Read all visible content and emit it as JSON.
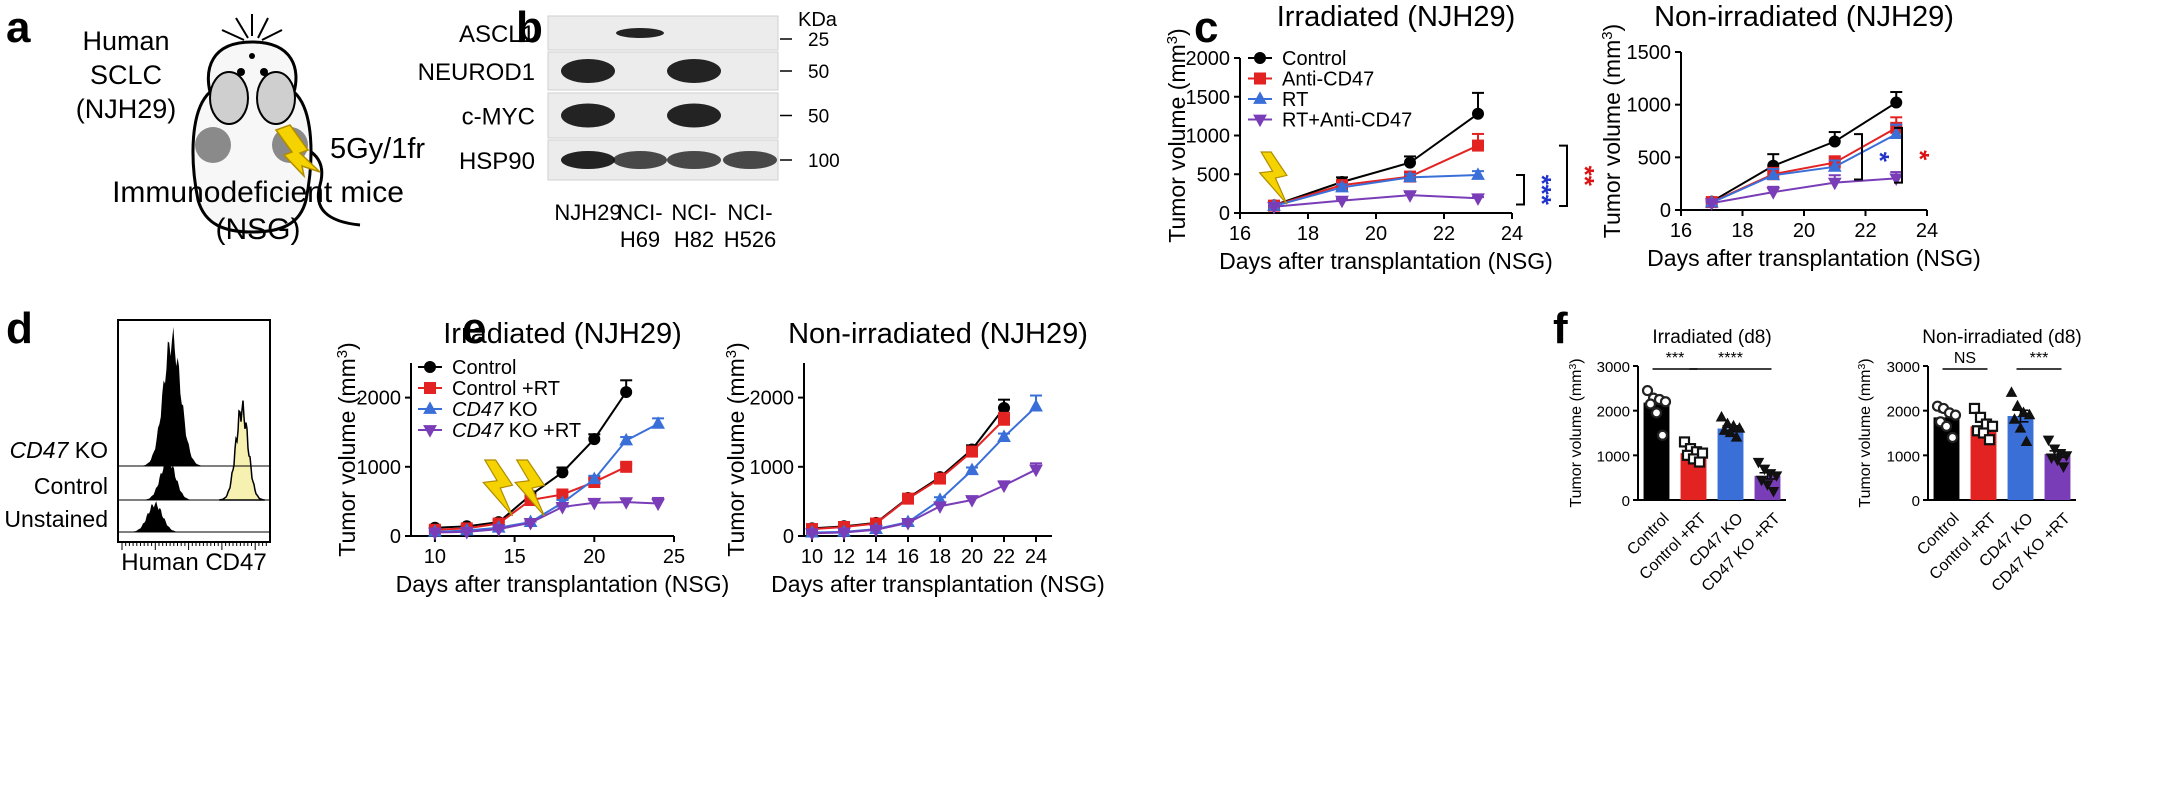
{
  "colors": {
    "control": "#000000",
    "anti_cd47": "#e32222",
    "rt": "#3a6fd8",
    "rt_anti_cd47": "#7a3db8",
    "bolt": "#f5d300",
    "bolt_stroke": "#b08c00",
    "flow_fill": "#f6f1b1",
    "sig_blue": "#2233cc",
    "sig_red": "#dd1111"
  },
  "panel_letters": [
    "a",
    "b",
    "c",
    "d",
    "e",
    "f"
  ],
  "panel_a": {
    "label_line1": "Human",
    "label_line2": "SCLC",
    "label_line3": "(NJH29)",
    "dose": "5Gy/1fr",
    "mice_line1": "Immunodeficient mice",
    "mice_line2": "(NSG)",
    "icons": [
      "mouse-icon",
      "lightning-icon"
    ]
  },
  "panel_b": {
    "unit": "KDa",
    "rows": [
      {
        "protein": "ASCL1",
        "marker": "25"
      },
      {
        "protein": "NEUROD1",
        "marker": "50"
      },
      {
        "protein": "c-MYC",
        "marker": "50"
      },
      {
        "protein": "HSP90",
        "marker": "100"
      }
    ],
    "lanes": [
      {
        "line1": "NJH29",
        "line2": ""
      },
      {
        "line1": "NCI-",
        "line2": "H69"
      },
      {
        "line1": "NCI-",
        "line2": "H82"
      },
      {
        "line1": "NCI-",
        "line2": "H526"
      }
    ],
    "band_presence": [
      [
        0,
        1,
        0,
        0
      ],
      [
        1,
        0,
        1,
        0
      ],
      [
        1,
        0,
        1,
        0
      ],
      [
        1,
        1,
        1,
        1
      ]
    ]
  },
  "panel_d": {
    "xlabel": "Human CD47",
    "tracks": [
      "CD47 KO",
      "Control",
      "Unstained"
    ]
  },
  "chart_data": [
    {
      "type": "line",
      "panel": "c",
      "title": "Irradiated (NJH29)",
      "xlabel": "Days after transplantation (NSG)",
      "ylabel": "Tumor volume (mm3)",
      "ylabel_main": "Tumor volume (mm",
      "ylabel_sup": "3",
      "ylabel_end": ")",
      "xlim": [
        16,
        24
      ],
      "ylim": [
        0,
        2000
      ],
      "xticks": [
        "16",
        "18",
        "20",
        "22",
        "24"
      ],
      "yticks": [
        "0",
        "500",
        "1000",
        "1500",
        "2000"
      ],
      "x": [
        17,
        19,
        21,
        23
      ],
      "legend": "top-left",
      "irradiation_days": [
        17
      ],
      "series": [
        {
          "name": "Control",
          "color_key": "control",
          "marker": "circle",
          "values": [
            100,
            400,
            650,
            1280
          ],
          "errors": [
            20,
            60,
            80,
            270
          ]
        },
        {
          "name": "Anti-CD47",
          "color_key": "anti_cd47",
          "marker": "square",
          "values": [
            95,
            360,
            470,
            870
          ],
          "errors": [
            15,
            50,
            60,
            150
          ]
        },
        {
          "name": "RT",
          "color_key": "rt",
          "marker": "triangle-up",
          "values": [
            90,
            330,
            460,
            490
          ],
          "errors": [
            15,
            40,
            40,
            50
          ]
        },
        {
          "name": "RT+Anti-CD47",
          "color_key": "rt_anti_cd47",
          "marker": "triangle-down",
          "values": [
            80,
            160,
            230,
            190
          ],
          "errors": [
            10,
            20,
            40,
            15
          ]
        }
      ],
      "significance": [
        {
          "text": "***",
          "color_key": "sig_blue"
        },
        {
          "text": "**",
          "color_key": "sig_red"
        }
      ]
    },
    {
      "type": "line",
      "panel": "c",
      "title": "Non-irradiated (NJH29)",
      "xlabel": "Days after transplantation (NSG)",
      "ylabel_main": "Tumor volume (mm",
      "ylabel_sup": "3",
      "ylabel_end": ")",
      "xlim": [
        16,
        24
      ],
      "ylim": [
        0,
        1500
      ],
      "xticks": [
        "16",
        "18",
        "20",
        "22",
        "24"
      ],
      "yticks": [
        "0",
        "500",
        "1000",
        "1500"
      ],
      "x": [
        17,
        19,
        21,
        23
      ],
      "series": [
        {
          "name": "Control",
          "color_key": "control",
          "marker": "circle",
          "values": [
            80,
            420,
            650,
            1020
          ],
          "errors": [
            15,
            110,
            90,
            100
          ]
        },
        {
          "name": "Anti-CD47",
          "color_key": "anti_cd47",
          "marker": "square",
          "values": [
            75,
            340,
            450,
            780
          ],
          "errors": [
            15,
            60,
            60,
            100
          ]
        },
        {
          "name": "RT",
          "color_key": "rt",
          "marker": "triangle-up",
          "values": [
            70,
            330,
            410,
            720
          ],
          "errors": [
            15,
            60,
            60,
            90
          ]
        },
        {
          "name": "RT+Anti-CD47",
          "color_key": "rt_anti_cd47",
          "marker": "triangle-down",
          "values": [
            65,
            170,
            260,
            300
          ],
          "errors": [
            10,
            50,
            70,
            60
          ]
        }
      ],
      "significance": [
        {
          "text": "*",
          "color_key": "sig_blue"
        },
        {
          "text": "*",
          "color_key": "sig_red"
        }
      ]
    },
    {
      "type": "line",
      "panel": "e",
      "title": "Irradiated (NJH29)",
      "xlabel": "Days after transplantation (NSG)",
      "ylabel_main": "Tumor volume (mm",
      "ylabel_sup": "3",
      "ylabel_end": ")",
      "xlim": [
        8.5,
        25
      ],
      "ylim": [
        0,
        2500
      ],
      "xticks": [
        "10",
        "15",
        "20",
        "25"
      ],
      "xtick_values": [
        10,
        15,
        20,
        25
      ],
      "yticks": [
        "0",
        "1000",
        "2000"
      ],
      "ytick_values": [
        0,
        1000,
        2000
      ],
      "x": [
        10,
        12,
        14,
        16,
        18,
        20,
        22,
        24
      ],
      "legend": "top-left",
      "irradiation_days": [
        14,
        16
      ],
      "series": [
        {
          "name": "Control",
          "color_key": "control",
          "marker": "circle",
          "values": [
            120,
            140,
            200,
            590,
            920,
            1400,
            2080,
            null
          ],
          "errors": [
            20,
            20,
            30,
            50,
            70,
            70,
            170,
            null
          ]
        },
        {
          "name": "Control +RT",
          "color_key": "anti_cd47",
          "marker": "square",
          "values": [
            90,
            110,
            180,
            520,
            600,
            780,
            1000,
            null
          ],
          "errors": [
            15,
            15,
            20,
            40,
            40,
            40,
            40,
            null
          ]
        },
        {
          "name": "CD47 KO",
          "name_italic": "CD47",
          "name_rest": " KO",
          "color_key": "rt",
          "marker": "triangle-up",
          "values": [
            60,
            80,
            120,
            200,
            480,
            820,
            1380,
            1620
          ],
          "errors": [
            10,
            10,
            15,
            30,
            40,
            50,
            50,
            80
          ]
        },
        {
          "name": "CD47 KO +RT",
          "name_italic": "CD47",
          "name_rest": " KO +RT",
          "color_key": "rt_anti_cd47",
          "marker": "triangle-down",
          "values": [
            50,
            60,
            100,
            190,
            420,
            480,
            490,
            470
          ],
          "errors": [
            10,
            10,
            15,
            20,
            40,
            40,
            50,
            80
          ]
        }
      ]
    },
    {
      "type": "line",
      "panel": "e",
      "title": "Non-irradiated (NJH29)",
      "xlabel": "Days after transplantation (NSG)",
      "ylabel_main": "Tumor volume (mm",
      "ylabel_sup": "3",
      "ylabel_end": ")",
      "xlim": [
        9.5,
        25
      ],
      "ylim": [
        0,
        2500
      ],
      "xticks": [
        "10",
        "12",
        "14",
        "16",
        "18",
        "20",
        "22",
        "24"
      ],
      "xtick_values": [
        10,
        12,
        14,
        16,
        18,
        20,
        22,
        24
      ],
      "yticks": [
        "0",
        "1000",
        "2000"
      ],
      "ytick_values": [
        0,
        1000,
        2000
      ],
      "x": [
        10,
        12,
        14,
        16,
        18,
        20,
        22,
        24
      ],
      "series": [
        {
          "name": "Control",
          "color_key": "control",
          "marker": "circle",
          "values": [
            110,
            140,
            190,
            550,
            850,
            1250,
            1850,
            null
          ],
          "errors": [
            20,
            20,
            20,
            30,
            40,
            60,
            120,
            null
          ]
        },
        {
          "name": "Control +RT",
          "color_key": "anti_cd47",
          "marker": "square",
          "values": [
            100,
            130,
            180,
            540,
            830,
            1220,
            1680,
            null
          ],
          "errors": [
            20,
            20,
            20,
            30,
            40,
            60,
            100,
            null
          ]
        },
        {
          "name": "CD47 KO",
          "color_key": "rt",
          "marker": "triangle-up",
          "values": [
            50,
            60,
            100,
            200,
            520,
            950,
            1430,
            1870
          ],
          "errors": [
            10,
            10,
            15,
            20,
            40,
            40,
            50,
            160
          ]
        },
        {
          "name": "CD47 KO +RT",
          "color_key": "rt_anti_cd47",
          "marker": "triangle-down",
          "values": [
            40,
            50,
            90,
            190,
            430,
            520,
            730,
            960
          ],
          "errors": [
            10,
            10,
            15,
            20,
            30,
            40,
            60,
            90
          ]
        }
      ]
    },
    {
      "type": "bar",
      "panel": "f",
      "title": "Irradiated (d8)",
      "ylabel": "Tumor volume (mm3)",
      "ylabel_main": "Tumor volume (mm",
      "ylabel_sup": "3",
      "ylabel_end": ")",
      "ylim": [
        0,
        3000
      ],
      "yticks": [
        "0",
        "1000",
        "2000",
        "3000"
      ],
      "categories": [
        "Control",
        "Control +RT",
        "CD47 KO",
        "CD47 KO +RT"
      ],
      "color_keys": [
        "control",
        "anti_cd47",
        "rt",
        "rt_anti_cd47"
      ],
      "point_markers": [
        "circle",
        "square",
        "triangle-up",
        "triangle-down"
      ],
      "values": [
        2180,
        1050,
        1600,
        540
      ],
      "errors": [
        130,
        70,
        60,
        70
      ],
      "points": [
        [
          2450,
          2280,
          2250,
          2200,
          2150,
          1950,
          1450
        ],
        [
          1300,
          1150,
          1080,
          1050,
          1000,
          920,
          850
        ],
        [
          1850,
          1700,
          1650,
          1600,
          1550,
          1500,
          1400
        ],
        [
          850,
          700,
          600,
          550,
          450,
          350,
          200
        ]
      ],
      "brackets": [
        {
          "from": 0,
          "to": 1,
          "text": "***"
        },
        {
          "from": 1,
          "to": 3,
          "text": "****"
        }
      ]
    },
    {
      "type": "bar",
      "panel": "f",
      "title": "Non-irradiated (d8)",
      "ylabel_main": "Tumor volume (mm",
      "ylabel_sup": "3",
      "ylabel_end": ")",
      "ylim": [
        0,
        3000
      ],
      "yticks": [
        "0",
        "1000",
        "2000",
        "3000"
      ],
      "categories": [
        "Control",
        "Control +RT",
        "CD47 KO",
        "CD47 KO +RT"
      ],
      "color_keys": [
        "control",
        "anti_cd47",
        "rt",
        "rt_anti_cd47"
      ],
      "point_markers": [
        "circle",
        "square",
        "triangle-up",
        "triangle-down"
      ],
      "values": [
        1850,
        1650,
        1880,
        1030
      ],
      "errors": [
        120,
        110,
        130,
        70
      ],
      "points": [
        [
          2100,
          2050,
          1950,
          1900,
          1750,
          1650,
          1400
        ],
        [
          2050,
          1850,
          1700,
          1650,
          1550,
          1500,
          1350
        ],
        [
          2400,
          2100,
          1950,
          1900,
          1800,
          1600,
          1300
        ],
        [
          1350,
          1150,
          1050,
          1000,
          950,
          900,
          750
        ]
      ],
      "brackets": [
        {
          "from": 0,
          "to": 1,
          "text": "NS"
        },
        {
          "from": 2,
          "to": 3,
          "text": "***"
        }
      ]
    }
  ]
}
